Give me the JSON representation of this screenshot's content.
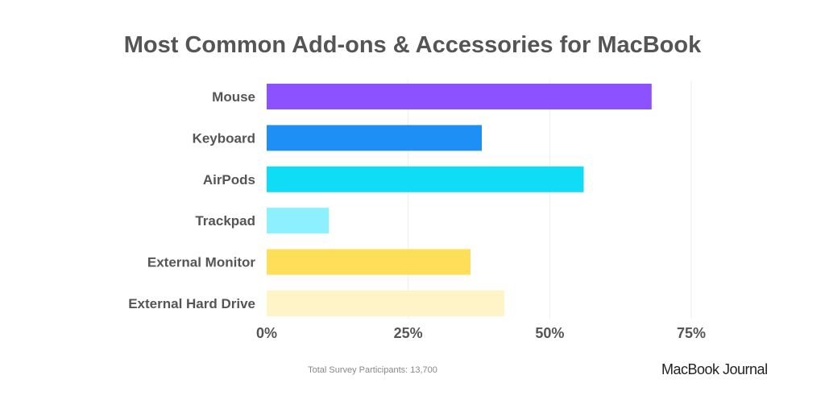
{
  "chart_data": {
    "type": "bar",
    "orientation": "horizontal",
    "title": "Most Common Add-ons & Accessories for MacBook",
    "categories": [
      "Mouse",
      "Keyboard",
      "AirPods",
      "Trackpad",
      "External Monitor",
      "External Hard Drive"
    ],
    "values": [
      68,
      38,
      56,
      11,
      36,
      42
    ],
    "colors": [
      "#8c52ff",
      "#1e90f5",
      "#0fdcf5",
      "#8cf0ff",
      "#ffde59",
      "#fff3c8"
    ],
    "xlim": [
      0,
      75
    ],
    "xticks": [
      0,
      25,
      50,
      75
    ],
    "xtick_labels": [
      "0%",
      "25%",
      "50%",
      "75%"
    ],
    "grid": true,
    "xlabel": "",
    "ylabel": ""
  },
  "footnote": "Total Survey Participants: 13,700",
  "brand": "MacBook Journal"
}
